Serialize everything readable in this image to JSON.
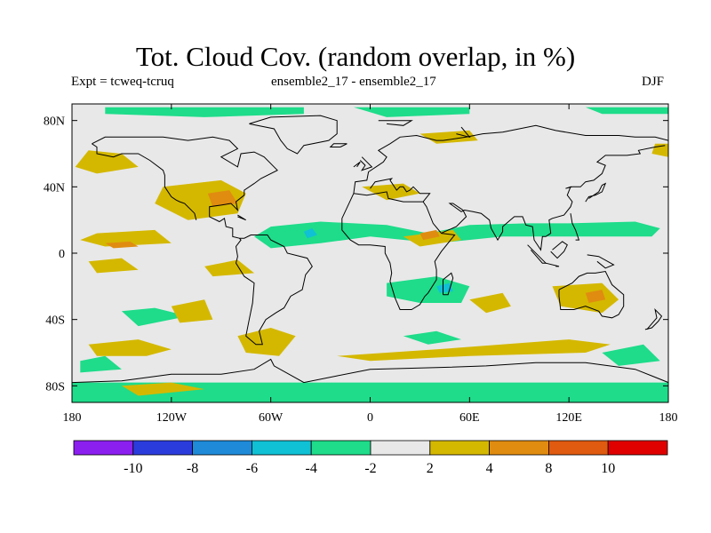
{
  "header": {
    "title": "Tot. Cloud Cov. (random overlap, in %)",
    "left": "Expt = tcweq-tcruq",
    "center": "ensemble2_17 - ensemble2_17",
    "right": "DJF"
  },
  "chart_data": {
    "type": "heatmap",
    "title": "Tot. Cloud Cov. (random overlap, in %)",
    "xlim": [
      -180,
      180
    ],
    "ylim": [
      -90,
      90
    ],
    "x_ticks": [
      {
        "value": -180,
        "label": "180"
      },
      {
        "value": -120,
        "label": "120W"
      },
      {
        "value": -60,
        "label": "60W"
      },
      {
        "value": 0,
        "label": "0"
      },
      {
        "value": 60,
        "label": "60E"
      },
      {
        "value": 120,
        "label": "120E"
      },
      {
        "value": 180,
        "label": "180"
      }
    ],
    "y_ticks": [
      {
        "value": 80,
        "label": "80N"
      },
      {
        "value": 40,
        "label": "40N"
      },
      {
        "value": 0,
        "label": "0"
      },
      {
        "value": -40,
        "label": "40S"
      },
      {
        "value": -80,
        "label": "80S"
      }
    ],
    "colorbar": {
      "bins": [
        {
          "range": [
            "",
            -10
          ],
          "color": "#8b1ff0"
        },
        {
          "range": [
            -10,
            -8
          ],
          "color": "#2b3cdc"
        },
        {
          "range": [
            -8,
            -6
          ],
          "color": "#1e8ad8"
        },
        {
          "range": [
            -6,
            -4
          ],
          "color": "#10c0d4"
        },
        {
          "range": [
            -4,
            -2
          ],
          "color": "#1edc8a"
        },
        {
          "range": [
            -2,
            2
          ],
          "color": "#e8e8e8"
        },
        {
          "range": [
            2,
            4
          ],
          "color": "#d4b800"
        },
        {
          "range": [
            4,
            8
          ],
          "color": "#e08c10"
        },
        {
          "range": [
            8,
            10
          ],
          "color": "#e05a10"
        },
        {
          "range": [
            10,
            ""
          ],
          "color": "#e00000"
        }
      ],
      "labels": [
        "-10",
        "-8",
        "-6",
        "-4",
        "-2",
        "2",
        "4",
        "8",
        "10"
      ]
    },
    "background_color": "#e8e8e8",
    "regions": [
      {
        "category": "-4 to -2",
        "polygon": [
          [
            -180,
            -78
          ],
          [
            180,
            -78
          ],
          [
            180,
            -90
          ],
          [
            -180,
            -90
          ]
        ]
      },
      {
        "category": "-4 to -2",
        "polygon": [
          [
            -160,
            88
          ],
          [
            -40,
            88
          ],
          [
            -40,
            84
          ],
          [
            -100,
            82
          ],
          [
            -160,
            84
          ]
        ]
      },
      {
        "category": "-4 to -2",
        "polygon": [
          [
            -10,
            88
          ],
          [
            60,
            88
          ],
          [
            60,
            84
          ],
          [
            10,
            82
          ]
        ]
      },
      {
        "category": "-4 to -2",
        "polygon": [
          [
            130,
            88
          ],
          [
            180,
            88
          ],
          [
            180,
            84
          ],
          [
            140,
            84
          ]
        ]
      },
      {
        "category": "-4 to -2",
        "polygon": [
          [
            -60,
            16
          ],
          [
            -30,
            19
          ],
          [
            10,
            17
          ],
          [
            35,
            12
          ],
          [
            60,
            17
          ],
          [
            95,
            18
          ],
          [
            120,
            18
          ],
          [
            160,
            19
          ],
          [
            175,
            15
          ],
          [
            170,
            10
          ],
          [
            120,
            10
          ],
          [
            80,
            10
          ],
          [
            40,
            6
          ],
          [
            0,
            10
          ],
          [
            -30,
            6
          ],
          [
            -60,
            3
          ],
          [
            -70,
            10
          ]
        ]
      },
      {
        "category": "-4 to -2",
        "polygon": [
          [
            10,
            -18
          ],
          [
            40,
            -14
          ],
          [
            60,
            -20
          ],
          [
            55,
            -30
          ],
          [
            30,
            -30
          ],
          [
            10,
            -26
          ]
        ]
      },
      {
        "category": "-4 to -2",
        "polygon": [
          [
            -150,
            -35
          ],
          [
            -130,
            -33
          ],
          [
            -110,
            -38
          ],
          [
            -140,
            -44
          ]
        ]
      },
      {
        "category": "-4 to -2",
        "polygon": [
          [
            -175,
            -65
          ],
          [
            -160,
            -62
          ],
          [
            -150,
            -70
          ],
          [
            -175,
            -72
          ]
        ]
      },
      {
        "category": "-4 to -2",
        "polygon": [
          [
            20,
            -50
          ],
          [
            40,
            -47
          ],
          [
            55,
            -52
          ],
          [
            35,
            -55
          ]
        ]
      },
      {
        "category": "-4 to -2",
        "polygon": [
          [
            140,
            -60
          ],
          [
            165,
            -55
          ],
          [
            175,
            -65
          ],
          [
            150,
            -68
          ]
        ]
      },
      {
        "category": "-4 to -6",
        "polygon": [
          [
            -40,
            13
          ],
          [
            -35,
            15
          ],
          [
            -32,
            11
          ],
          [
            -38,
            9
          ]
        ]
      },
      {
        "category": "-4 to -6",
        "polygon": [
          [
            40,
            -20
          ],
          [
            48,
            -18
          ],
          [
            50,
            -23
          ],
          [
            42,
            -24
          ]
        ]
      },
      {
        "category": "2 to 4",
        "polygon": [
          [
            -170,
            62
          ],
          [
            -150,
            60
          ],
          [
            -140,
            52
          ],
          [
            -165,
            48
          ],
          [
            -178,
            52
          ]
        ]
      },
      {
        "category": "2 to 4",
        "polygon": [
          [
            -125,
            40
          ],
          [
            -90,
            44
          ],
          [
            -75,
            36
          ],
          [
            -80,
            24
          ],
          [
            -110,
            20
          ],
          [
            -130,
            30
          ]
        ]
      },
      {
        "category": "2 to 4",
        "polygon": [
          [
            -165,
            12
          ],
          [
            -130,
            14
          ],
          [
            -120,
            6
          ],
          [
            -160,
            4
          ],
          [
            -175,
            8
          ]
        ]
      },
      {
        "category": "2 to 4",
        "polygon": [
          [
            -100,
            -8
          ],
          [
            -80,
            -4
          ],
          [
            -70,
            -12
          ],
          [
            -95,
            -14
          ]
        ]
      },
      {
        "category": "2 to 4",
        "polygon": [
          [
            -170,
            -5
          ],
          [
            -150,
            -3
          ],
          [
            -140,
            -10
          ],
          [
            -165,
            -12
          ]
        ]
      },
      {
        "category": "2 to 4",
        "polygon": [
          [
            -120,
            -32
          ],
          [
            -100,
            -28
          ],
          [
            -95,
            -40
          ],
          [
            -115,
            -42
          ]
        ]
      },
      {
        "category": "2 to 4",
        "polygon": [
          [
            -80,
            -50
          ],
          [
            -60,
            -45
          ],
          [
            -45,
            -50
          ],
          [
            -55,
            -62
          ],
          [
            -75,
            -60
          ]
        ]
      },
      {
        "category": "2 to 4",
        "polygon": [
          [
            -170,
            -55
          ],
          [
            -140,
            -52
          ],
          [
            -120,
            -58
          ],
          [
            -135,
            -62
          ],
          [
            -165,
            -62
          ]
        ]
      },
      {
        "category": "2 to 4",
        "polygon": [
          [
            -20,
            -62
          ],
          [
            40,
            -58
          ],
          [
            120,
            -52
          ],
          [
            145,
            -55
          ],
          [
            130,
            -60
          ],
          [
            60,
            -62
          ],
          [
            0,
            -65
          ]
        ]
      },
      {
        "category": "2 to 4",
        "polygon": [
          [
            20,
            10
          ],
          [
            50,
            14
          ],
          [
            55,
            8
          ],
          [
            30,
            4
          ]
        ]
      },
      {
        "category": "2 to 4",
        "polygon": [
          [
            -5,
            40
          ],
          [
            20,
            42
          ],
          [
            30,
            36
          ],
          [
            10,
            32
          ]
        ]
      },
      {
        "category": "2 to 4",
        "polygon": [
          [
            30,
            72
          ],
          [
            60,
            74
          ],
          [
            65,
            68
          ],
          [
            40,
            66
          ]
        ]
      },
      {
        "category": "2 to 4",
        "polygon": [
          [
            110,
            -20
          ],
          [
            140,
            -18
          ],
          [
            150,
            -28
          ],
          [
            140,
            -36
          ],
          [
            115,
            -32
          ]
        ]
      },
      {
        "category": "2 to 4",
        "polygon": [
          [
            60,
            -28
          ],
          [
            80,
            -24
          ],
          [
            85,
            -32
          ],
          [
            70,
            -36
          ]
        ]
      },
      {
        "category": "2 to 4",
        "polygon": [
          [
            170,
            60
          ],
          [
            180,
            58
          ],
          [
            180,
            66
          ],
          [
            172,
            66
          ]
        ]
      },
      {
        "category": "2 to 4",
        "polygon": [
          [
            -150,
            -80
          ],
          [
            -120,
            -78
          ],
          [
            -100,
            -82
          ],
          [
            -140,
            -86
          ]
        ]
      },
      {
        "category": "4 to 8",
        "polygon": [
          [
            -98,
            36
          ],
          [
            -85,
            38
          ],
          [
            -80,
            30
          ],
          [
            -95,
            28
          ]
        ]
      },
      {
        "category": "4 to 8",
        "polygon": [
          [
            30,
            12
          ],
          [
            40,
            14
          ],
          [
            42,
            10
          ],
          [
            32,
            8
          ]
        ]
      },
      {
        "category": "4 to 8",
        "polygon": [
          [
            -160,
            6
          ],
          [
            -145,
            7
          ],
          [
            -140,
            4
          ],
          [
            -155,
            3
          ]
        ]
      },
      {
        "category": "4 to 8",
        "polygon": [
          [
            130,
            -24
          ],
          [
            140,
            -22
          ],
          [
            142,
            -28
          ],
          [
            132,
            -30
          ]
        ]
      }
    ],
    "coastlines_shown": true,
    "grid": false
  },
  "colors": {
    "frame": "#000000",
    "coast": "#000000"
  }
}
